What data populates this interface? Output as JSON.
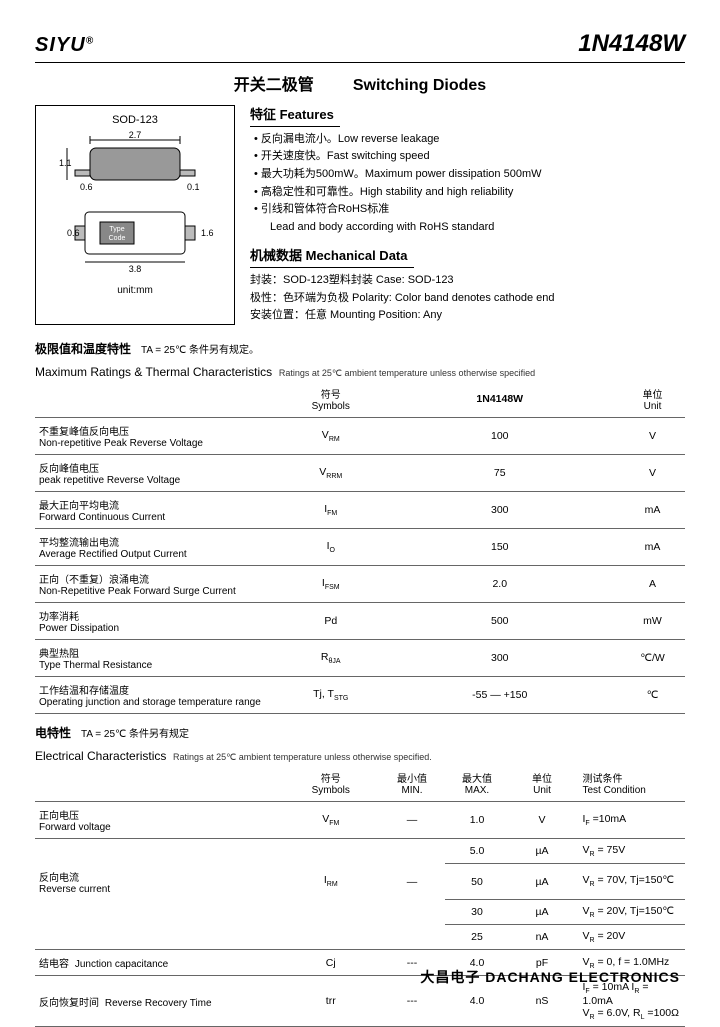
{
  "header": {
    "brand": "SIYU",
    "reg": "®",
    "part": "1N4148W"
  },
  "subtitle": {
    "cn": "开关二极管",
    "en": "Switching Diodes"
  },
  "package": {
    "name": "SOD-123",
    "unit_label": "unit:mm",
    "dims": {
      "w": "2.7",
      "lead_l": "0.6",
      "lead_r": "0.1",
      "h_body": "1.1",
      "bot_w": "3.8",
      "bot_l": "0.6",
      "bot_h": "1.6",
      "type_label": "Type\nCode"
    }
  },
  "features": {
    "heading": "特征 Features",
    "items": [
      "反向漏电流小。Low reverse leakage",
      "开关速度快。Fast switching speed",
      "最大功耗为500mW。Maximum power dissipation 500mW",
      "高稳定性和可靠性。High stability and high reliability",
      "引线和管体符合RoHS标准"
    ],
    "indent_line": "Lead and body according with RoHS standard"
  },
  "mechdata": {
    "heading": "机械数据 Mechanical Data",
    "lines": [
      "封装：SOD-123塑料封装  Case: SOD-123",
      "极性：色环端为负极  Polarity: Color band denotes cathode end",
      "安装位置：任意  Mounting Position: Any"
    ]
  },
  "maxratings": {
    "cn_heading": "极限值和温度特性",
    "ta_note": "TA = 25℃  条件另有规定。",
    "en_heading": "Maximum Ratings & Thermal Characteristics",
    "en_note": "Ratings at 25℃ ambient temperature unless otherwise specified",
    "head": {
      "sym_cn": "符号",
      "sym_en": "Symbols",
      "part": "1N4148W",
      "unit_cn": "单位",
      "unit_en": "Unit"
    },
    "rows": [
      {
        "cn": "不重复峰值反向电压",
        "en": "Non-repetitive Peak Reverse Voltage",
        "sym": "V_RM",
        "val": "100",
        "unit": "V"
      },
      {
        "cn": "反向峰值电压",
        "en": "peak repetitive Reverse Voltage",
        "sym": "V_RRM",
        "val": "75",
        "unit": "V"
      },
      {
        "cn": "最大正向平均电流",
        "en": "Forward Continuous Current",
        "sym": "I_FM",
        "val": "300",
        "unit": "mA"
      },
      {
        "cn": "平均整流输出电流",
        "en": "Average Rectified Output Current",
        "sym": "I_O",
        "val": "150",
        "unit": "mA"
      },
      {
        "cn": "正向（不重复）浪涌电流",
        "en": "Non-Repetitive Peak Forward Surge Current",
        "sym": "I_FSM",
        "val": "2.0",
        "unit": "A"
      },
      {
        "cn": "功率消耗",
        "en": "Power Dissipation",
        "sym": "Pd",
        "val": "500",
        "unit": "mW"
      },
      {
        "cn": "典型热阻",
        "en": "Type Thermal Resistance",
        "sym": "R_θJA",
        "val": "300",
        "unit": "℃/W"
      },
      {
        "cn": "工作结温和存储温度",
        "en": "Operating junction and storage temperature range",
        "sym": "Tj, T_STG",
        "val": "-55 — +150",
        "unit": "℃"
      }
    ]
  },
  "elec": {
    "cn_heading": "电特性",
    "ta_note": "TA = 25℃ 条件另有规定",
    "en_heading": "Electrical Characteristics",
    "en_note": "Ratings at 25℃ ambient temperature unless otherwise specified.",
    "head": {
      "sym_cn": "符号",
      "sym_en": "Symbols",
      "min_cn": "最小值",
      "min_en": "MIN.",
      "max_cn": "最大值",
      "max_en": "MAX.",
      "unit_cn": "单位",
      "unit_en": "Unit",
      "cond_cn": "测试条件",
      "cond_en": "Test Condition"
    },
    "rows": [
      {
        "cn": "正向电压",
        "en": "Forward voltage",
        "sym": "V_FM",
        "min": "—",
        "max": "1.0",
        "unit": "V",
        "cond": "I_F =10mA"
      }
    ],
    "reverse": {
      "cn": "反向电流",
      "en": "Reverse current",
      "sym": "I_RM",
      "min": "—",
      "lines": [
        {
          "max": "5.0",
          "unit": "µA",
          "cond": "V_R = 75V"
        },
        {
          "max": "50",
          "unit": "µA",
          "cond": "V_R = 70V, Tj=150℃"
        },
        {
          "max": "30",
          "unit": "µA",
          "cond": "V_R = 20V, Tj=150℃"
        },
        {
          "max": "25",
          "unit": "nA",
          "cond": "V_R = 20V"
        }
      ]
    },
    "cap": {
      "cn": "结电容",
      "en": "Junction capacitance",
      "sym": "Cj",
      "min": "---",
      "max": "4.0",
      "unit": "pF",
      "cond": "V_R = 0, f = 1.0MHz"
    },
    "trr": {
      "cn": "反向恢复时间",
      "en": "Reverse Recovery Time",
      "sym": "trr",
      "min": "---",
      "max": "4.0",
      "unit": "nS",
      "cond": "I_F = 10mA    I_R = 1.0mA\nV_R = 6.0V, R_L =100Ω"
    }
  },
  "footer": {
    "cn": "大昌电子",
    "en": "DACHANG ELECTRONICS"
  }
}
